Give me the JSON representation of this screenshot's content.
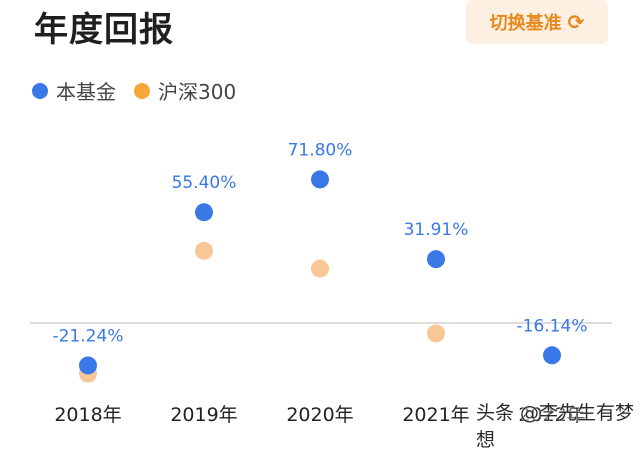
{
  "header": {
    "title": "年度回报",
    "switch_label": "切换基准",
    "switch_icon": "refresh-icon"
  },
  "legend": [
    {
      "label": "本基金",
      "color": "#3b78e7"
    },
    {
      "label": "沪深300",
      "color": "#f7a638"
    }
  ],
  "chart_data": {
    "type": "scatter",
    "categories": [
      "2018年",
      "2019年",
      "2020年",
      "2021年",
      "2022年"
    ],
    "series": [
      {
        "name": "本基金",
        "color": "#3b78e7",
        "values": [
          -21.24,
          55.4,
          71.8,
          31.91,
          -16.14
        ],
        "labels": [
          "-21.24%",
          "55.40%",
          "71.80%",
          "31.91%",
          "-16.14%"
        ]
      },
      {
        "name": "沪深300",
        "color": "#f8c795",
        "values": [
          -25.3,
          36.1,
          27.2,
          -5.2,
          null
        ]
      }
    ],
    "ylim": [
      -25,
      90
    ],
    "zero_line": true
  },
  "watermark": "头条 @李先生有梦想"
}
